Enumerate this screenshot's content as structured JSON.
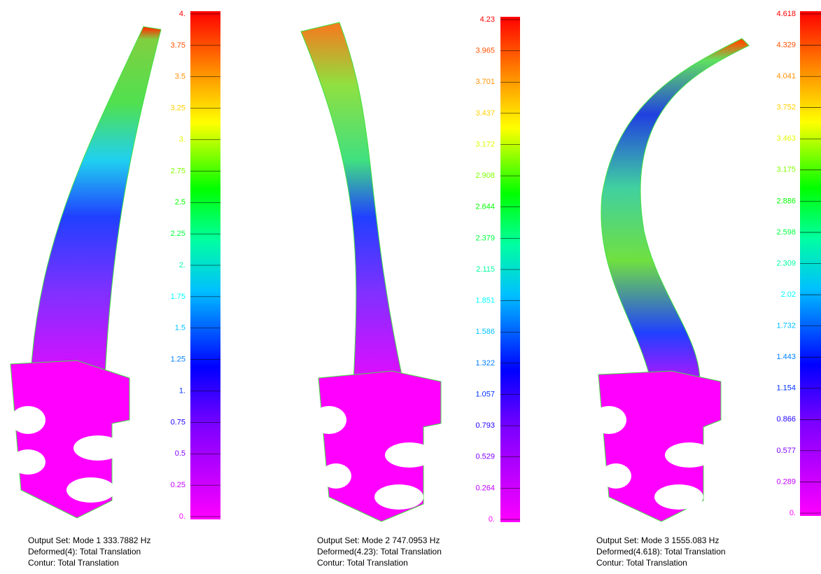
{
  "panels": [
    {
      "legend": [
        "4.",
        "3.75",
        "3.5",
        "3.25",
        "3.",
        "2.75",
        "2.5",
        "2.25",
        "2.",
        "1.75",
        "1.5",
        "1.25",
        "1.",
        "0.75",
        "0.5",
        "0.25",
        "0."
      ],
      "caption": [
        "Output Set: Mode 1 333.7882 Hz",
        "Deformed(4): Total Translation",
        "Contur: Total Translation"
      ]
    },
    {
      "legend": [
        "4.23",
        "3.965",
        "3.701",
        "3.437",
        "3.172",
        "2.908",
        "2.644",
        "2.379",
        "2.115",
        "1.851",
        "1.586",
        "1.322",
        "1.057",
        "0.793",
        "0.529",
        "0.264",
        "0."
      ],
      "caption": [
        "Output Set: Mode 2 747.0953 Hz",
        "Deformed(4.23): Total Translation",
        "Contur: Total Translation"
      ]
    },
    {
      "legend": [
        "4.618",
        "4.329",
        "4.041",
        "3.752",
        "3.463",
        "3.175",
        "2.886",
        "2.598",
        "2.309",
        "2.02",
        "1.732",
        "1.443",
        "1.154",
        "0.866",
        "0.577",
        "0.289",
        "0."
      ],
      "caption": [
        "Output Set: Mode 3 1555.083 Hz",
        "Deformed(4.618): Total Translation",
        "Contur: Total Translation"
      ]
    }
  ]
}
